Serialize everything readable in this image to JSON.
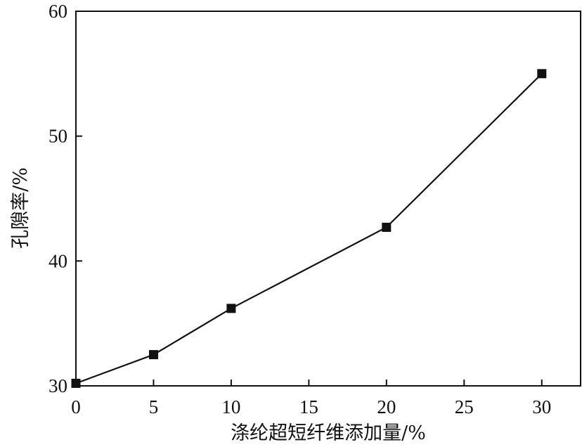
{
  "chart_data": {
    "type": "line",
    "title": "",
    "xlabel": "涤纶超短纤维添加量/%",
    "ylabel": "孔隙率/%",
    "x": [
      0,
      5,
      10,
      20,
      30
    ],
    "series": [
      {
        "values": [
          30.2,
          32.5,
          36.2,
          42.7,
          55.0
        ],
        "color": "#111111",
        "marker": "square"
      }
    ],
    "xlim": [
      0,
      32.5
    ],
    "ylim": [
      30,
      60
    ],
    "xticks": [
      0,
      5,
      10,
      15,
      20,
      25,
      30
    ],
    "yticks": [
      30,
      40,
      50,
      60
    ],
    "grid": false,
    "legend": "none"
  }
}
